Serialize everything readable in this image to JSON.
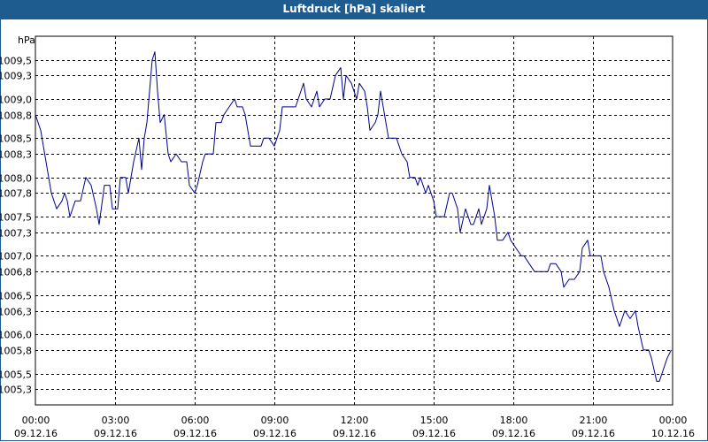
{
  "window": {
    "title": "Luftdruck [hPa] skaliert"
  },
  "chart_data": {
    "type": "line",
    "title": "Luftdruck [hPa] skaliert",
    "ylabel": "hPa",
    "ylim": [
      1005.1,
      1009.8
    ],
    "grid": true,
    "line_color": "#00008b",
    "y_ticks": [
      {
        "value": 1009.5,
        "label": "1009,5"
      },
      {
        "value": 1009.3,
        "label": "1009,3"
      },
      {
        "value": 1009.0,
        "label": "1009,0"
      },
      {
        "value": 1008.8,
        "label": "1008,8"
      },
      {
        "value": 1008.5,
        "label": "1008,5"
      },
      {
        "value": 1008.3,
        "label": "1008,3"
      },
      {
        "value": 1008.0,
        "label": "1008,0"
      },
      {
        "value": 1007.8,
        "label": "1007,8"
      },
      {
        "value": 1007.5,
        "label": "1007,5"
      },
      {
        "value": 1007.3,
        "label": "1007,3"
      },
      {
        "value": 1007.0,
        "label": "1007,0"
      },
      {
        "value": 1006.8,
        "label": "1006,8"
      },
      {
        "value": 1006.5,
        "label": "1006,5"
      },
      {
        "value": 1006.3,
        "label": "1006,3"
      },
      {
        "value": 1006.0,
        "label": "1006,0"
      },
      {
        "value": 1005.8,
        "label": "1005,8"
      },
      {
        "value": 1005.5,
        "label": "1005,5"
      },
      {
        "value": 1005.3,
        "label": "1005,3"
      }
    ],
    "x_ticks": [
      {
        "hours": 0,
        "time": "00:00",
        "date": "09.12.16"
      },
      {
        "hours": 3,
        "time": "03:00",
        "date": "09.12.16"
      },
      {
        "hours": 6,
        "time": "06:00",
        "date": "09.12.16"
      },
      {
        "hours": 9,
        "time": "09:00",
        "date": "09.12.16"
      },
      {
        "hours": 12,
        "time": "12:00",
        "date": "09.12.16"
      },
      {
        "hours": 15,
        "time": "15:00",
        "date": "09.12.16"
      },
      {
        "hours": 18,
        "time": "18:00",
        "date": "09.12.16"
      },
      {
        "hours": 21,
        "time": "21:00",
        "date": "09.12.16"
      },
      {
        "hours": 24,
        "time": "00:00",
        "date": "10.12.16"
      }
    ],
    "series": [
      {
        "points": [
          [
            0.0,
            1008.8
          ],
          [
            0.2,
            1008.6
          ],
          [
            0.4,
            1008.2
          ],
          [
            0.6,
            1007.8
          ],
          [
            0.8,
            1007.6
          ],
          [
            1.0,
            1007.7
          ],
          [
            1.1,
            1007.8
          ],
          [
            1.2,
            1007.7
          ],
          [
            1.3,
            1007.5
          ],
          [
            1.5,
            1007.7
          ],
          [
            1.7,
            1007.7
          ],
          [
            1.9,
            1008.0
          ],
          [
            2.1,
            1007.9
          ],
          [
            2.3,
            1007.6
          ],
          [
            2.4,
            1007.4
          ],
          [
            2.6,
            1007.9
          ],
          [
            2.8,
            1007.9
          ],
          [
            2.9,
            1007.6
          ],
          [
            3.1,
            1007.6
          ],
          [
            3.2,
            1008.0
          ],
          [
            3.4,
            1008.0
          ],
          [
            3.5,
            1007.8
          ],
          [
            3.7,
            1008.2
          ],
          [
            3.9,
            1008.5
          ],
          [
            4.0,
            1008.1
          ],
          [
            4.1,
            1008.5
          ],
          [
            4.2,
            1008.7
          ],
          [
            4.4,
            1009.5
          ],
          [
            4.5,
            1009.6
          ],
          [
            4.6,
            1009.1
          ],
          [
            4.7,
            1008.7
          ],
          [
            4.85,
            1008.8
          ],
          [
            5.0,
            1008.3
          ],
          [
            5.1,
            1008.2
          ],
          [
            5.3,
            1008.3
          ],
          [
            5.5,
            1008.2
          ],
          [
            5.7,
            1008.2
          ],
          [
            5.8,
            1007.9
          ],
          [
            6.0,
            1007.8
          ],
          [
            6.1,
            1007.9
          ],
          [
            6.3,
            1008.2
          ],
          [
            6.4,
            1008.3
          ],
          [
            6.6,
            1008.3
          ],
          [
            6.7,
            1008.3
          ],
          [
            6.8,
            1008.7
          ],
          [
            7.0,
            1008.7
          ],
          [
            7.1,
            1008.8
          ],
          [
            7.3,
            1008.9
          ],
          [
            7.5,
            1009.0
          ],
          [
            7.6,
            1008.9
          ],
          [
            7.8,
            1008.9
          ],
          [
            7.9,
            1008.8
          ],
          [
            8.1,
            1008.4
          ],
          [
            8.3,
            1008.4
          ],
          [
            8.5,
            1008.4
          ],
          [
            8.6,
            1008.5
          ],
          [
            8.8,
            1008.5
          ],
          [
            9.0,
            1008.4
          ],
          [
            9.1,
            1008.5
          ],
          [
            9.2,
            1008.6
          ],
          [
            9.3,
            1008.9
          ],
          [
            9.5,
            1008.9
          ],
          [
            9.6,
            1008.9
          ],
          [
            9.8,
            1008.9
          ],
          [
            9.9,
            1009.0
          ],
          [
            10.1,
            1009.2
          ],
          [
            10.2,
            1009.0
          ],
          [
            10.4,
            1008.9
          ],
          [
            10.5,
            1009.0
          ],
          [
            10.6,
            1009.1
          ],
          [
            10.7,
            1008.9
          ],
          [
            10.9,
            1009.0
          ],
          [
            11.1,
            1009.0
          ],
          [
            11.3,
            1009.3
          ],
          [
            11.5,
            1009.4
          ],
          [
            11.6,
            1009.0
          ],
          [
            11.7,
            1009.3
          ],
          [
            11.9,
            1009.2
          ],
          [
            12.1,
            1009.0
          ],
          [
            12.2,
            1009.2
          ],
          [
            12.4,
            1009.1
          ],
          [
            12.5,
            1008.9
          ],
          [
            12.6,
            1008.6
          ],
          [
            12.8,
            1008.7
          ],
          [
            12.9,
            1008.8
          ],
          [
            13.0,
            1009.1
          ],
          [
            13.2,
            1008.7
          ],
          [
            13.3,
            1008.5
          ],
          [
            13.6,
            1008.5
          ],
          [
            13.8,
            1008.3
          ],
          [
            14.0,
            1008.2
          ],
          [
            14.1,
            1008.0
          ],
          [
            14.3,
            1008.0
          ],
          [
            14.4,
            1007.9
          ],
          [
            14.5,
            1008.0
          ],
          [
            14.7,
            1007.8
          ],
          [
            14.8,
            1007.9
          ],
          [
            15.0,
            1007.7
          ],
          [
            15.1,
            1007.5
          ],
          [
            15.3,
            1007.5
          ],
          [
            15.4,
            1007.5
          ],
          [
            15.6,
            1007.8
          ],
          [
            15.7,
            1007.8
          ],
          [
            15.9,
            1007.6
          ],
          [
            16.0,
            1007.3
          ],
          [
            16.2,
            1007.6
          ],
          [
            16.4,
            1007.4
          ],
          [
            16.5,
            1007.4
          ],
          [
            16.7,
            1007.6
          ],
          [
            16.8,
            1007.4
          ],
          [
            17.0,
            1007.6
          ],
          [
            17.1,
            1007.9
          ],
          [
            17.3,
            1007.5
          ],
          [
            17.4,
            1007.2
          ],
          [
            17.6,
            1007.2
          ],
          [
            17.8,
            1007.3
          ],
          [
            17.9,
            1007.2
          ],
          [
            18.1,
            1007.1
          ],
          [
            18.3,
            1007.0
          ],
          [
            18.4,
            1007.0
          ],
          [
            18.6,
            1006.9
          ],
          [
            18.8,
            1006.8
          ],
          [
            18.9,
            1006.8
          ],
          [
            19.1,
            1006.8
          ],
          [
            19.3,
            1006.8
          ],
          [
            19.4,
            1006.9
          ],
          [
            19.6,
            1006.9
          ],
          [
            19.8,
            1006.8
          ],
          [
            19.9,
            1006.6
          ],
          [
            20.1,
            1006.7
          ],
          [
            20.3,
            1006.7
          ],
          [
            20.5,
            1006.8
          ],
          [
            20.6,
            1007.1
          ],
          [
            20.8,
            1007.2
          ],
          [
            20.9,
            1007.0
          ],
          [
            21.1,
            1007.0
          ],
          [
            21.3,
            1007.0
          ],
          [
            21.4,
            1006.8
          ],
          [
            21.6,
            1006.6
          ],
          [
            21.8,
            1006.3
          ],
          [
            21.9,
            1006.2
          ],
          [
            22.0,
            1006.1
          ],
          [
            22.2,
            1006.3
          ],
          [
            22.4,
            1006.2
          ],
          [
            22.6,
            1006.3
          ],
          [
            22.7,
            1006.1
          ],
          [
            22.9,
            1005.8
          ],
          [
            23.1,
            1005.8
          ],
          [
            23.2,
            1005.7
          ],
          [
            23.4,
            1005.4
          ],
          [
            23.5,
            1005.4
          ],
          [
            23.6,
            1005.5
          ],
          [
            23.8,
            1005.7
          ],
          [
            23.95,
            1005.8
          ]
        ]
      }
    ]
  }
}
